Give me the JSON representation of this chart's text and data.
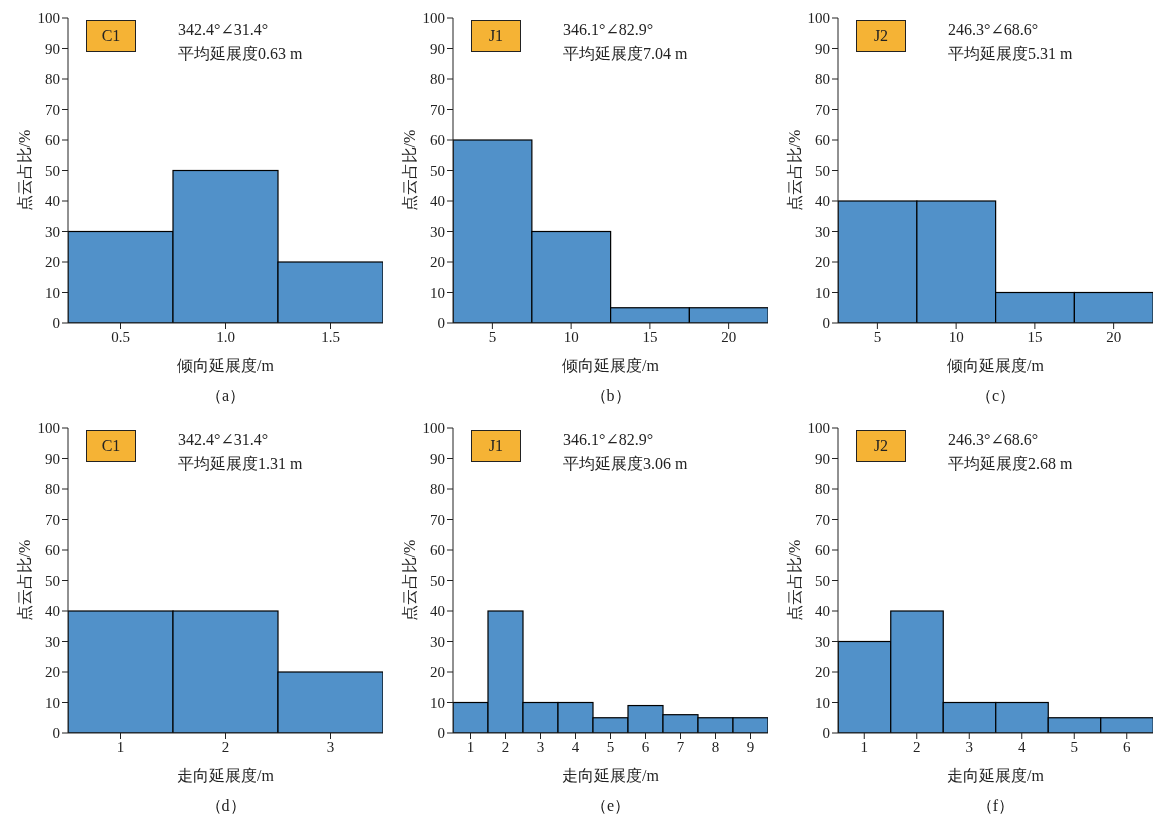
{
  "chart_data": [
    {
      "type": "histogram",
      "xlabel": "倾向延展度/m",
      "ylabel": "点云占比/%",
      "bins": [
        0.25,
        0.75,
        1.25,
        1.75
      ],
      "values": [
        30,
        50,
        20
      ],
      "color": "#5191c9",
      "xlim": [
        0.25,
        1.75
      ],
      "xticks": [
        {
          "value": 0.5,
          "label": "0.5"
        },
        {
          "value": 1,
          "label": "1.0"
        },
        {
          "value": 1.5,
          "label": "1.5"
        }
      ],
      "ylim": [
        0,
        100
      ],
      "yticks": [
        0,
        10,
        20,
        30,
        40,
        50,
        60,
        70,
        80,
        90,
        100
      ],
      "annotations": [
        "C1",
        "342.4°∠31.4°",
        "平均延展度0.63 m",
        "（a）"
      ]
    },
    {
      "type": "histogram",
      "xlabel": "倾向延展度/m",
      "ylabel": "点云占比/%",
      "bins": [
        2.5,
        7.5,
        12.5,
        17.5,
        22.5
      ],
      "values": [
        60,
        30,
        5,
        5
      ],
      "color": "#5191c9",
      "xlim": [
        2.5,
        22.5
      ],
      "xticks": [
        5,
        10,
        15,
        20
      ],
      "ylim": [
        0,
        100
      ],
      "yticks": [
        0,
        10,
        20,
        30,
        40,
        50,
        60,
        70,
        80,
        90,
        100
      ],
      "annotations": [
        "J1",
        "346.1°∠82.9°",
        "平均延展度7.04 m",
        "（b）"
      ]
    },
    {
      "type": "histogram",
      "xlabel": "倾向延展度/m",
      "ylabel": "点云占比/%",
      "bins": [
        2.5,
        7.5,
        12.5,
        17.5,
        22.5
      ],
      "values": [
        40,
        40,
        10,
        10
      ],
      "color": "#5191c9",
      "xlim": [
        2.5,
        22.5
      ],
      "xticks": [
        5,
        10,
        15,
        20
      ],
      "ylim": [
        0,
        100
      ],
      "yticks": [
        0,
        10,
        20,
        30,
        40,
        50,
        60,
        70,
        80,
        90,
        100
      ],
      "annotations": [
        "J2",
        "246.3°∠68.6°",
        "平均延展度5.31 m",
        "（c）"
      ]
    },
    {
      "type": "histogram",
      "xlabel": "走向延展度/m",
      "ylabel": "点云占比/%",
      "bins": [
        0.5,
        1.5,
        2.5,
        3.5
      ],
      "values": [
        40,
        40,
        20
      ],
      "color": "#5191c9",
      "xlim": [
        0.5,
        3.5
      ],
      "xticks": [
        1,
        2,
        3
      ],
      "ylim": [
        0,
        100
      ],
      "yticks": [
        0,
        10,
        20,
        30,
        40,
        50,
        60,
        70,
        80,
        90,
        100
      ],
      "annotations": [
        "C1",
        "342.4°∠31.4°",
        "平均延展度1.31 m",
        "（d）"
      ]
    },
    {
      "type": "histogram",
      "xlabel": "走向延展度/m",
      "ylabel": "点云占比/%",
      "bins": [
        0.5,
        1.5,
        2.5,
        3.5,
        4.5,
        5.5,
        6.5,
        7.5,
        8.5,
        9.5
      ],
      "values": [
        10,
        40,
        10,
        10,
        5,
        9,
        6,
        5,
        5
      ],
      "color": "#5191c9",
      "xlim": [
        0.5,
        9.5
      ],
      "xticks": [
        1,
        2,
        3,
        4,
        5,
        6,
        7,
        8,
        9
      ],
      "ylim": [
        0,
        100
      ],
      "yticks": [
        0,
        10,
        20,
        30,
        40,
        50,
        60,
        70,
        80,
        90,
        100
      ],
      "annotations": [
        "J1",
        "346.1°∠82.9°",
        "平均延展度3.06 m",
        "（e）"
      ]
    },
    {
      "type": "histogram",
      "xlabel": "走向延展度/m",
      "ylabel": "点云占比/%",
      "bins": [
        0.5,
        1.5,
        2.5,
        3.5,
        4.5,
        5.5,
        6.5
      ],
      "values": [
        30,
        40,
        10,
        10,
        5,
        5
      ],
      "color": "#5191c9",
      "xlim": [
        0.5,
        6.5
      ],
      "xticks": [
        1,
        2,
        3,
        4,
        5,
        6
      ],
      "ylim": [
        0,
        100
      ],
      "yticks": [
        0,
        10,
        20,
        30,
        40,
        50,
        60,
        70,
        80,
        90,
        100
      ],
      "annotations": [
        "J2",
        "246.3°∠68.6°",
        "平均延展度2.68 m",
        "（f）"
      ]
    }
  ]
}
